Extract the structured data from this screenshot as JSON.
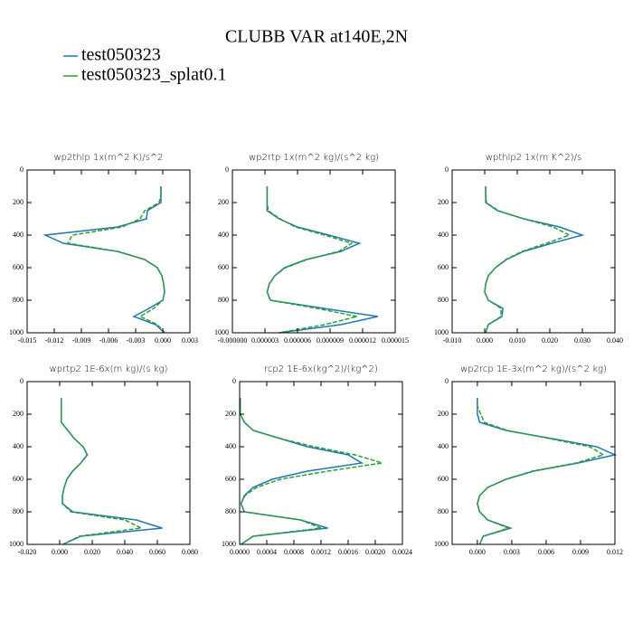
{
  "title": "CLUBB VAR at140E,2N",
  "legend": [
    {
      "name": "test050323",
      "color": "#1f77b4",
      "dash": "none"
    },
    {
      "name": "test050323_splat0.1",
      "color": "#2ca02c",
      "dash": "5,2"
    }
  ],
  "chart_data": [
    {
      "type": "line",
      "title": "wp2thlp   1x(m^2 K)/s^2",
      "y": [
        100,
        150,
        200,
        250,
        300,
        350,
        400,
        450,
        500,
        550,
        600,
        650,
        700,
        750,
        800,
        850,
        900,
        950,
        1000
      ],
      "series": [
        {
          "values": [
            -0.0002,
            -0.0002,
            -0.0002,
            -0.0017,
            -0.0018,
            -0.005,
            -0.013,
            -0.011,
            -0.005,
            -0.002,
            -0.0006,
            -0.0001,
            0.0001,
            0.0002,
            0.0,
            -0.0015,
            -0.0032,
            -0.0008,
            0.0002
          ]
        },
        {
          "values": [
            -0.0002,
            -0.0002,
            -0.0004,
            -0.002,
            -0.0025,
            -0.0045,
            -0.01,
            -0.0105,
            -0.005,
            -0.002,
            -0.0006,
            -0.0001,
            0.0001,
            0.0002,
            0.0,
            -0.001,
            -0.0025,
            -0.0006,
            0.0002
          ]
        }
      ],
      "xlim": [
        -0.015,
        0.003
      ],
      "xticks": [
        -0.015,
        -0.012,
        -0.009,
        -0.006,
        -0.003,
        {
          "value": 0,
          "label": "0.000"
        },
        0.003
      ],
      "ylim": [
        1000,
        0
      ],
      "yticks": [
        0,
        200,
        400,
        600,
        800,
        1000
      ]
    },
    {
      "type": "line",
      "title": "wp2rtp   1x(m^2 kg)/(s^2 kg)",
      "y": [
        100,
        150,
        200,
        250,
        300,
        350,
        400,
        450,
        500,
        550,
        600,
        650,
        700,
        750,
        800,
        850,
        900,
        950,
        1000
      ],
      "series": [
        {
          "values": [
            3.2e-06,
            3.2e-06,
            3.2e-06,
            3.2e-06,
            4.3e-06,
            6e-06,
            8.9e-06,
            1.17e-05,
            1e-05,
            6.8e-06,
            4.8e-06,
            3.9e-06,
            3.4e-06,
            3.2e-06,
            3.5e-06,
            8.4e-06,
            1.34e-05,
            1e-05,
            4.3e-06
          ]
        },
        {
          "values": [
            3.2e-06,
            3.2e-06,
            3.2e-06,
            3.3e-06,
            4.4e-06,
            5.8e-06,
            8.5e-06,
            1.1e-05,
            9.8e-06,
            6.9e-06,
            4.9e-06,
            3.9e-06,
            3.4e-06,
            3.2e-06,
            3.5e-06,
            7.8e-06,
            1.15e-05,
            8.5e-06,
            4.3e-06
          ]
        }
      ],
      "xlim": [
        0,
        1.5e-05
      ],
      "xticks": [
        {
          "value": 0,
          "label": "-0.000000"
        },
        {
          "value": 3e-06,
          "label": "0.000003"
        },
        {
          "value": 6e-06,
          "label": "0.000006"
        },
        {
          "value": 9e-06,
          "label": "0.000009"
        },
        {
          "value": 1.2e-05,
          "label": "0.000012"
        },
        {
          "value": 1.5e-05,
          "label": "0.000015"
        }
      ],
      "ylim": [
        1000,
        0
      ],
      "yticks": [
        0,
        200,
        400,
        600,
        800,
        1000
      ]
    },
    {
      "type": "line",
      "title": "wpthlp2   1x(m K^2)/s",
      "y": [
        100,
        150,
        200,
        250,
        300,
        350,
        400,
        450,
        500,
        550,
        600,
        650,
        700,
        750,
        800,
        850,
        900,
        950,
        1000
      ],
      "series": [
        {
          "values": [
            0.0003,
            0.0003,
            0.0003,
            0.0039,
            0.012,
            0.023,
            0.03,
            0.0206,
            0.012,
            0.0067,
            0.0033,
            0.0011,
            0.0003,
            0.0,
            0.0011,
            0.0056,
            0.0053,
            0.0011,
            0.0003
          ]
        },
        {
          "values": [
            0.0003,
            0.0003,
            0.0005,
            0.0042,
            0.012,
            0.021,
            0.026,
            0.019,
            0.0115,
            0.0065,
            0.0033,
            0.0011,
            0.0003,
            0.0,
            0.0011,
            0.005,
            0.005,
            0.0011,
            0.0003
          ]
        }
      ],
      "xlim": [
        -0.01,
        0.04
      ],
      "xticks": [
        {
          "value": -0.01,
          "label": "-0.010"
        },
        {
          "value": 0,
          "label": "0.000"
        },
        {
          "value": 0.01,
          "label": "0.010"
        },
        {
          "value": 0.02,
          "label": "0.020"
        },
        {
          "value": 0.03,
          "label": "0.030"
        },
        {
          "value": 0.04,
          "label": "0.040"
        }
      ],
      "ylim": [
        1000,
        0
      ],
      "yticks": [
        0,
        200,
        400,
        600,
        800,
        1000
      ]
    },
    {
      "type": "line",
      "title": "wprtp2   1E-6x(m kg)/(s kg)",
      "y": [
        100,
        150,
        200,
        250,
        300,
        350,
        400,
        450,
        500,
        550,
        600,
        650,
        700,
        750,
        800,
        850,
        900,
        950,
        1000
      ],
      "series": [
        {
          "values": [
            0.001,
            0.001,
            0.001,
            0.001,
            0.005,
            0.009,
            0.0144,
            0.017,
            0.013,
            0.008,
            0.0044,
            0.0028,
            0.0017,
            0.0017,
            0.008,
            0.047,
            0.063,
            0.013,
            0.002
          ]
        },
        {
          "values": [
            0.001,
            0.001,
            0.001,
            0.001,
            0.005,
            0.009,
            0.0144,
            0.0168,
            0.013,
            0.008,
            0.0044,
            0.0028,
            0.0017,
            0.0017,
            0.007,
            0.04,
            0.05,
            0.012,
            0.002
          ]
        }
      ],
      "xlim": [
        -0.02,
        0.08
      ],
      "xticks": [
        {
          "value": -0.02,
          "label": "-0.020"
        },
        {
          "value": 0,
          "label": "0.000"
        },
        {
          "value": 0.02,
          "label": "0.020"
        },
        {
          "value": 0.04,
          "label": "0.040"
        },
        {
          "value": 0.06,
          "label": "0.060"
        },
        {
          "value": 0.08,
          "label": "0.080"
        }
      ],
      "ylim": [
        1000,
        0
      ],
      "yticks": [
        0,
        200,
        400,
        600,
        800,
        1000
      ]
    },
    {
      "type": "line",
      "title": "rcp2   1E-6x(kg^2)/(kg^2)",
      "y": [
        100,
        150,
        200,
        250,
        300,
        350,
        400,
        450,
        500,
        550,
        600,
        650,
        700,
        750,
        800,
        850,
        900,
        950,
        1000
      ],
      "series": [
        {
          "values": [
            1e-05,
            1e-05,
            1e-05,
            7e-05,
            0.0002,
            0.0006,
            0.001,
            0.0016,
            0.0018,
            0.001,
            0.00048,
            0.0002,
            7e-05,
            2e-05,
            7e-05,
            0.0009,
            0.0013,
            0.0002,
            2e-05
          ]
        },
        {
          "values": [
            1e-05,
            1e-05,
            1e-05,
            7e-05,
            0.0002,
            0.0006,
            0.0011,
            0.0017,
            0.0021,
            0.0013,
            0.0006,
            0.00025,
            8e-05,
            2e-05,
            7e-05,
            0.0009,
            0.0012,
            0.0002,
            2e-05
          ]
        }
      ],
      "xlim": [
        0,
        0.0024
      ],
      "xticks": [
        {
          "value": 0,
          "label": "0.0000"
        },
        0.0004,
        0.0008,
        0.0012,
        0.0016,
        {
          "value": 0.002,
          "label": "0.0020"
        },
        0.0024
      ],
      "ylim": [
        1000,
        0
      ],
      "yticks": [
        0,
        200,
        400,
        600,
        800,
        1000
      ]
    },
    {
      "type": "line",
      "title": "wp2rcp   1E-3x(m^2 kg)/(s^2 kg)",
      "y": [
        100,
        150,
        200,
        250,
        300,
        350,
        400,
        450,
        500,
        550,
        600,
        650,
        700,
        750,
        800,
        850,
        900,
        950,
        1000
      ],
      "series": [
        {
          "values": [
            0.0,
            0.0,
            0.0,
            0.0002,
            0.0025,
            0.0065,
            0.0104,
            0.012,
            0.0088,
            0.0049,
            0.0025,
            0.0009,
            0.0002,
            0.0,
            0.0002,
            0.0009,
            0.0029,
            0.0005,
            0.0002
          ]
        },
        {
          "values": [
            0.0,
            0.0,
            0.0003,
            0.0006,
            0.0026,
            0.0063,
            0.0098,
            0.011,
            0.0086,
            0.0048,
            0.0025,
            0.0009,
            0.0002,
            0.0,
            0.0002,
            0.0009,
            0.0027,
            0.0005,
            0.0002
          ]
        }
      ],
      "xlim": [
        -0.0022,
        0.012
      ],
      "xticks": [
        {
          "value": 0,
          "label": "0.000"
        },
        0.003,
        0.006,
        0.009,
        0.012
      ],
      "ylim": [
        1000,
        0
      ],
      "yticks": [
        0,
        200,
        400,
        600,
        800,
        1000
      ]
    }
  ]
}
